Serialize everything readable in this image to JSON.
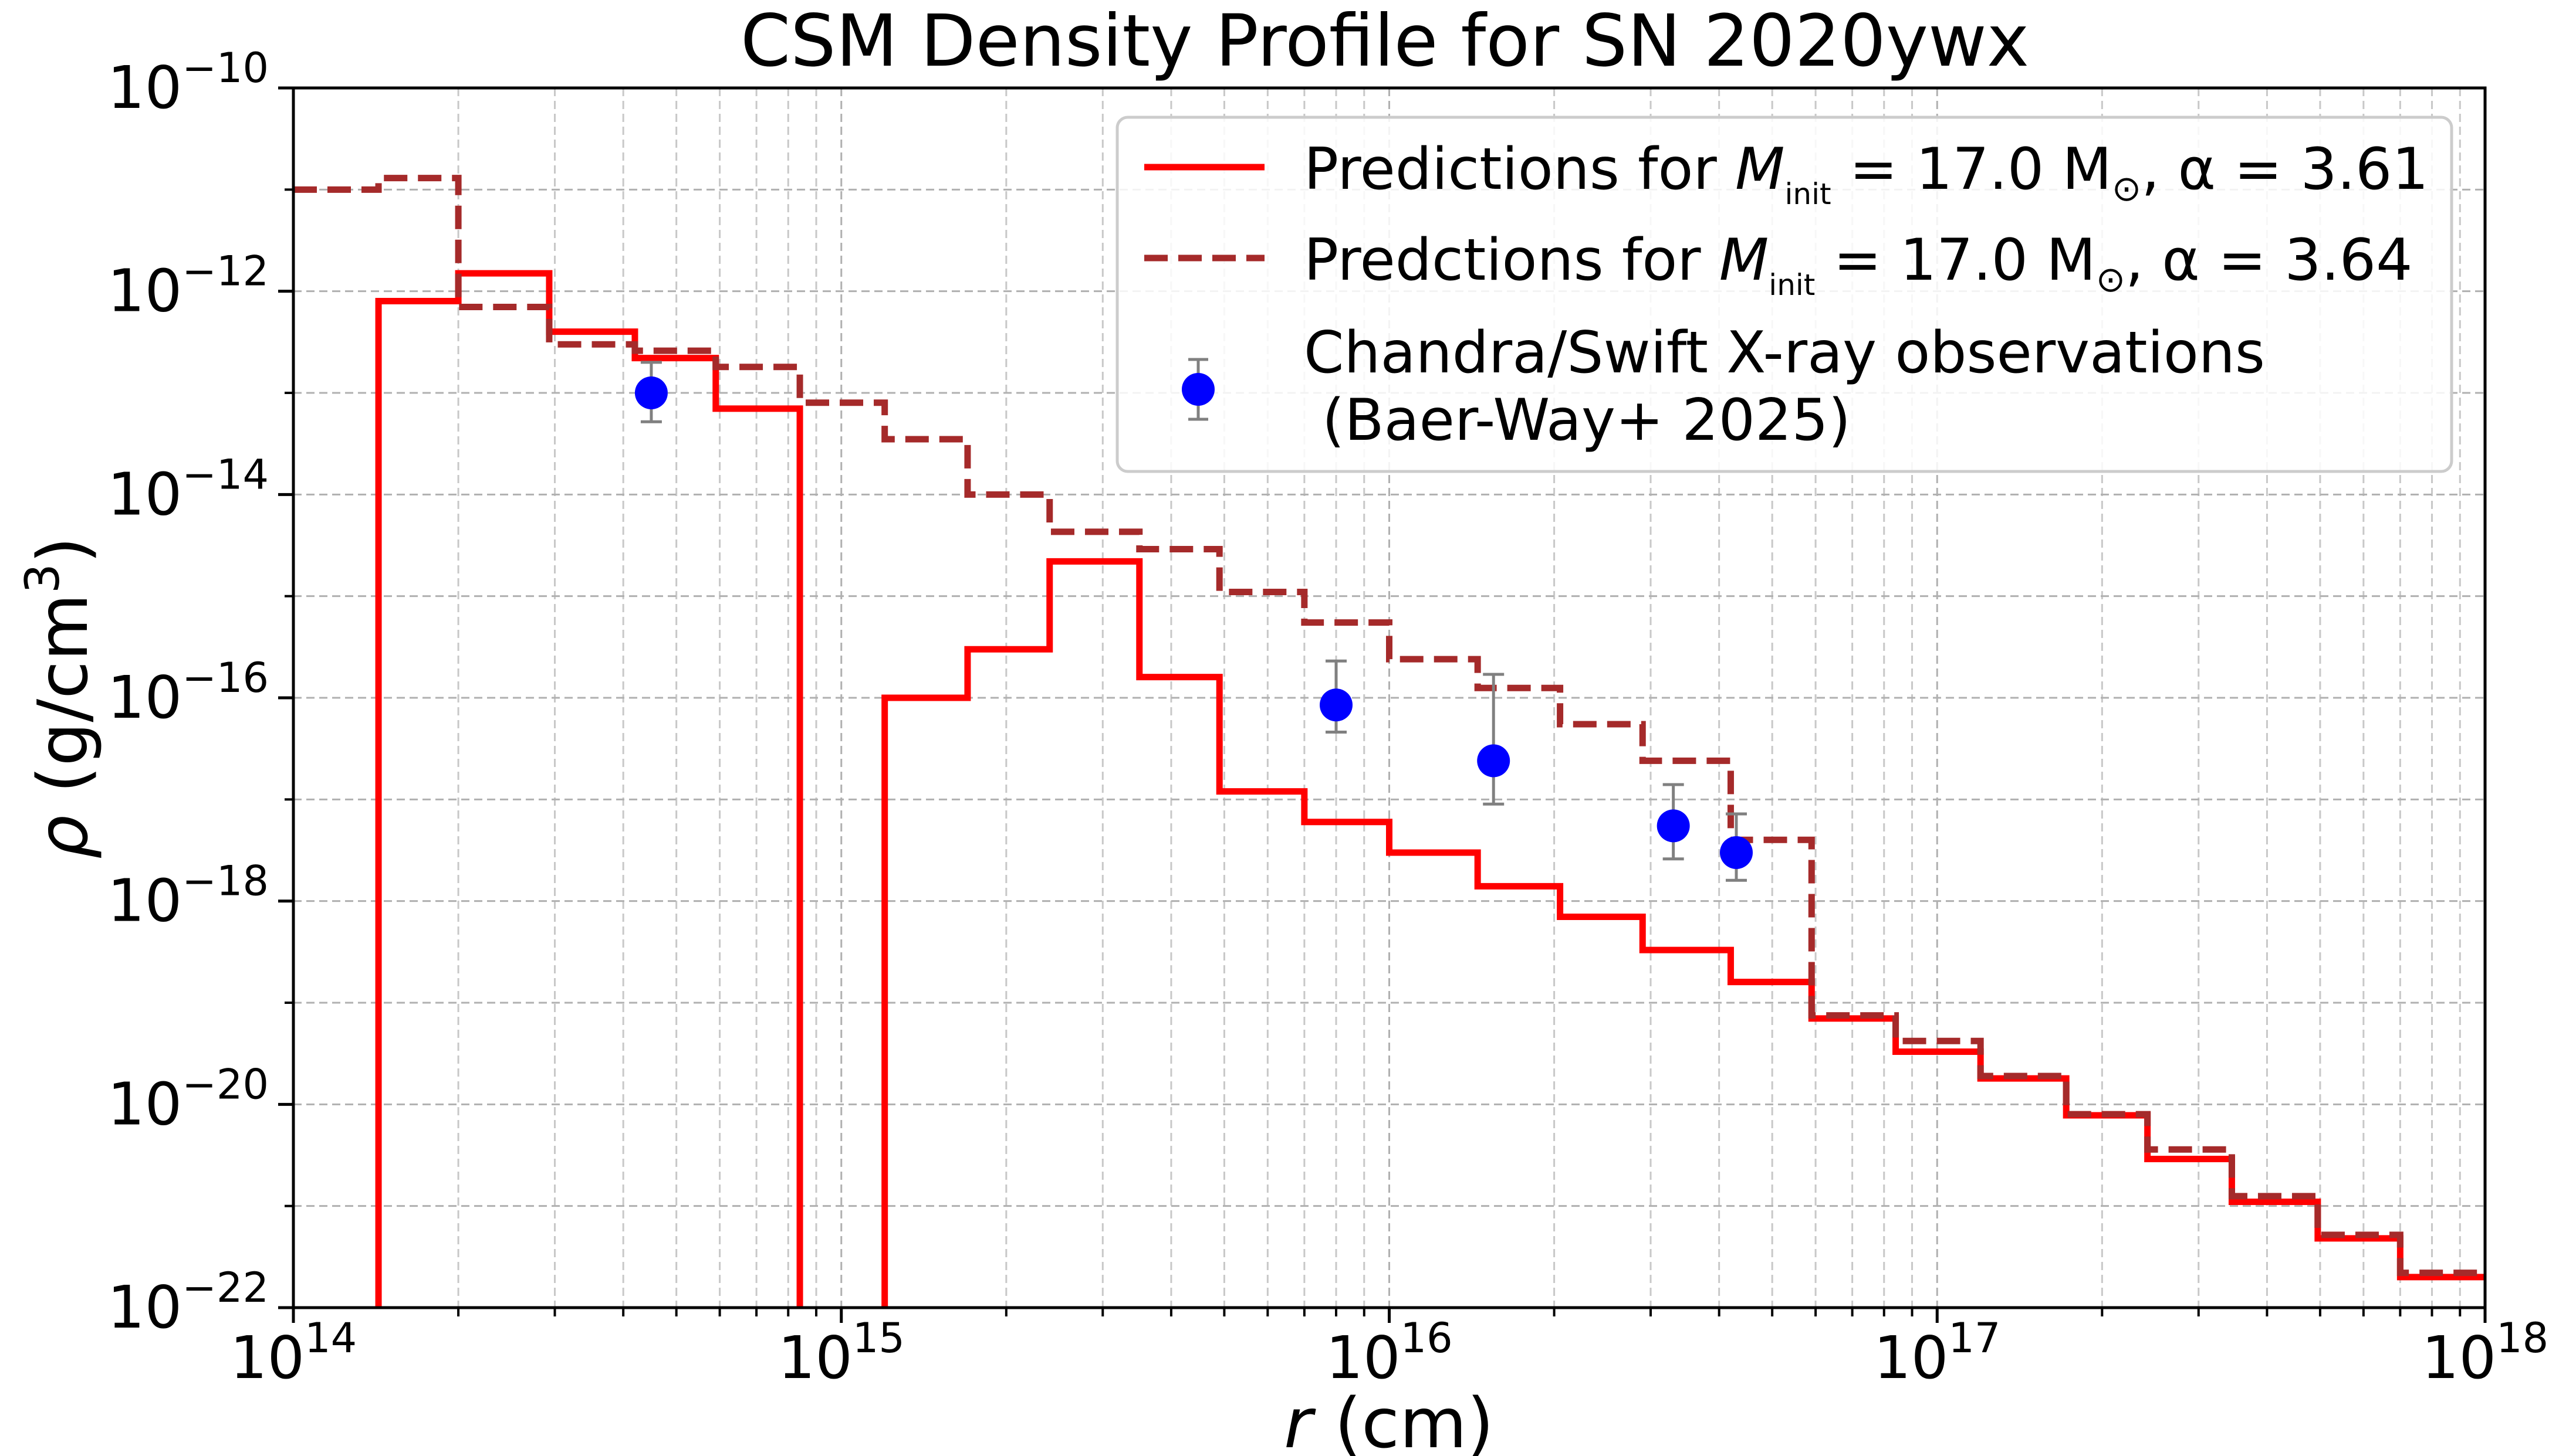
{
  "chart_data": {
    "type": "line",
    "title": "CSM Density Profile for SN 2020ywx",
    "xlabel": {
      "var": "r",
      "unit": "(cm)"
    },
    "ylabel": {
      "var": "ρ",
      "unit_prefix": "(g/cm",
      "unit_sup": "3",
      "unit_suffix": ")"
    },
    "xscale": "log",
    "yscale": "log",
    "xlim": [
      100000000000000.0,
      1e+18
    ],
    "ylim": [
      1e-22,
      1e-10
    ],
    "grid": "major and minor, dashed, light grey",
    "x_ticks": [
      {
        "value": 100000000000000.0,
        "base": "10",
        "exp": "14"
      },
      {
        "value": 1000000000000000.0,
        "base": "10",
        "exp": "15"
      },
      {
        "value": 1e+16,
        "base": "10",
        "exp": "16"
      },
      {
        "value": 1e+17,
        "base": "10",
        "exp": "17"
      },
      {
        "value": 1e+18,
        "base": "10",
        "exp": "18"
      }
    ],
    "y_ticks": [
      {
        "value": 1e-22,
        "base": "10",
        "exp": "−22"
      },
      {
        "value": 1e-20,
        "base": "10",
        "exp": "−20"
      },
      {
        "value": 1e-18,
        "base": "10",
        "exp": "−18"
      },
      {
        "value": 1e-16,
        "base": "10",
        "exp": "−16"
      },
      {
        "value": 1e-14,
        "base": "10",
        "exp": "−14"
      },
      {
        "value": 1e-12,
        "base": "10",
        "exp": "−12"
      },
      {
        "value": 1e-10,
        "base": "10",
        "exp": "−10"
      }
    ],
    "series": [
      {
        "name": "Predictions for M_init = 17.0 M☉, α = 3.61",
        "style": "solid",
        "color": "#ff0000",
        "steps": [
          [
            143000000000000.0,
            200000000000000.0,
            8e-13
          ],
          [
            200000000000000.0,
            293000000000000.0,
            1.5e-12
          ],
          [
            293000000000000.0,
            420000000000000.0,
            4e-13
          ],
          [
            420000000000000.0,
            590000000000000.0,
            2.2e-13
          ],
          [
            590000000000000.0,
            840000000000000.0,
            7e-14
          ],
          [
            1200000000000000.0,
            1700000000000000.0,
            1e-16
          ],
          [
            1700000000000000.0,
            2400000000000000.0,
            3e-16
          ],
          [
            2400000000000000.0,
            3500000000000000.0,
            2.2e-15
          ],
          [
            3500000000000000.0,
            4900000000000000.0,
            1.6e-16
          ],
          [
            4900000000000000.0,
            7000000000000000.0,
            1.2e-17
          ],
          [
            7000000000000000.0,
            1e+16,
            6e-18
          ],
          [
            1e+16,
            1.45e+16,
            3e-18
          ],
          [
            1.45e+16,
            2.05e+16,
            1.4e-18
          ],
          [
            2.05e+16,
            2.9e+16,
            7e-19
          ],
          [
            2.9e+16,
            4.2e+16,
            3.3e-19
          ],
          [
            4.2e+16,
            5.9e+16,
            1.6e-19
          ],
          [
            5.9e+16,
            8.4e+16,
            7e-20
          ],
          [
            8.4e+16,
            1.2e+17,
            3.3e-20
          ],
          [
            1.2e+17,
            1.72e+17,
            1.8e-20
          ],
          [
            1.72e+17,
            2.42e+17,
            7.8e-21
          ],
          [
            2.42e+17,
            3.45e+17,
            2.9e-21
          ],
          [
            3.45e+17,
            4.95e+17,
            1.1e-21
          ],
          [
            4.95e+17,
            7e+17,
            4.8e-22
          ],
          [
            7e+17,
            1e+18,
            2e-22
          ]
        ],
        "drops": [
          143000000000000.0,
          840000000000000.0,
          1200000000000000.0
        ]
      },
      {
        "name": "Predctions for M_init = 17.0 M☉, α = 3.64",
        "style": "dashed",
        "color": "#a52a2a",
        "steps": [
          [
            100000000000000.0,
            143000000000000.0,
            1e-11
          ],
          [
            143000000000000.0,
            200000000000000.0,
            1.3e-11
          ],
          [
            200000000000000.0,
            293000000000000.0,
            7e-13
          ],
          [
            293000000000000.0,
            420000000000000.0,
            3e-13
          ],
          [
            420000000000000.0,
            590000000000000.0,
            2.6e-13
          ],
          [
            590000000000000.0,
            840000000000000.0,
            1.8e-13
          ],
          [
            840000000000000.0,
            1200000000000000.0,
            8e-14
          ],
          [
            1200000000000000.0,
            1700000000000000.0,
            3.5e-14
          ],
          [
            1700000000000000.0,
            2400000000000000.0,
            1e-14
          ],
          [
            2400000000000000.0,
            3500000000000000.0,
            4.3e-15
          ],
          [
            3500000000000000.0,
            4900000000000000.0,
            2.9e-15
          ],
          [
            4900000000000000.0,
            7000000000000000.0,
            1.1e-15
          ],
          [
            7000000000000000.0,
            1e+16,
            5.5e-16
          ],
          [
            1e+16,
            1.45e+16,
            2.4e-16
          ],
          [
            1.45e+16,
            2.05e+16,
            1.25e-16
          ],
          [
            2.05e+16,
            2.9e+16,
            5.5e-17
          ],
          [
            2.9e+16,
            4.2e+16,
            2.4e-17
          ],
          [
            4.2e+16,
            5.9e+16,
            4e-18
          ],
          [
            5.9e+16,
            8.4e+16,
            7.5e-20
          ],
          [
            8.4e+16,
            1.2e+17,
            4.2e-20
          ],
          [
            1.2e+17,
            1.72e+17,
            1.9e-20
          ],
          [
            1.72e+17,
            2.42e+17,
            8e-21
          ],
          [
            2.42e+17,
            3.45e+17,
            3.6e-21
          ],
          [
            3.45e+17,
            4.95e+17,
            1.25e-21
          ],
          [
            4.95e+17,
            7e+17,
            5.2e-22
          ],
          [
            7e+17,
            1e+18,
            2.2e-22
          ]
        ],
        "drops": []
      },
      {
        "name": "Chandra/Swift X-ray observations",
        "name_line2": " (Baer-Way+ 2025)",
        "style": "points",
        "color": "#0000ff",
        "error_color": "#808080",
        "points": [
          {
            "x": 450000000000000.0,
            "y": 1e-13,
            "y_low": 5.2e-14,
            "y_high": 2e-13
          },
          {
            "x": 8000000000000000.0,
            "y": 8.5e-17,
            "y_low": 4.6e-17,
            "y_high": 2.3e-16
          },
          {
            "x": 1.55e+16,
            "y": 2.4e-17,
            "y_low": 9e-18,
            "y_high": 1.7e-16
          },
          {
            "x": 3.3e+16,
            "y": 5.5e-18,
            "y_low": 2.6e-18,
            "y_high": 1.4e-17
          },
          {
            "x": 4.3e+16,
            "y": 3e-18,
            "y_low": 1.6e-18,
            "y_high": 7.2e-18
          }
        ]
      }
    ],
    "legend": {
      "location": "upper right",
      "label1_prefix": "Predictions for ",
      "label2_prefix": "Predctions for ",
      "m_symbol": "M",
      "m_sub": "init",
      "mass_text": " = 17.0 M",
      "sun_symbol": "⊙",
      "alpha1_text": ", α = 3.61",
      "alpha2_text": ", α = 3.64",
      "obs_line1": "Chandra/Swift X-ray observations",
      "obs_line2": " (Baer-Way+ 2025)"
    }
  }
}
